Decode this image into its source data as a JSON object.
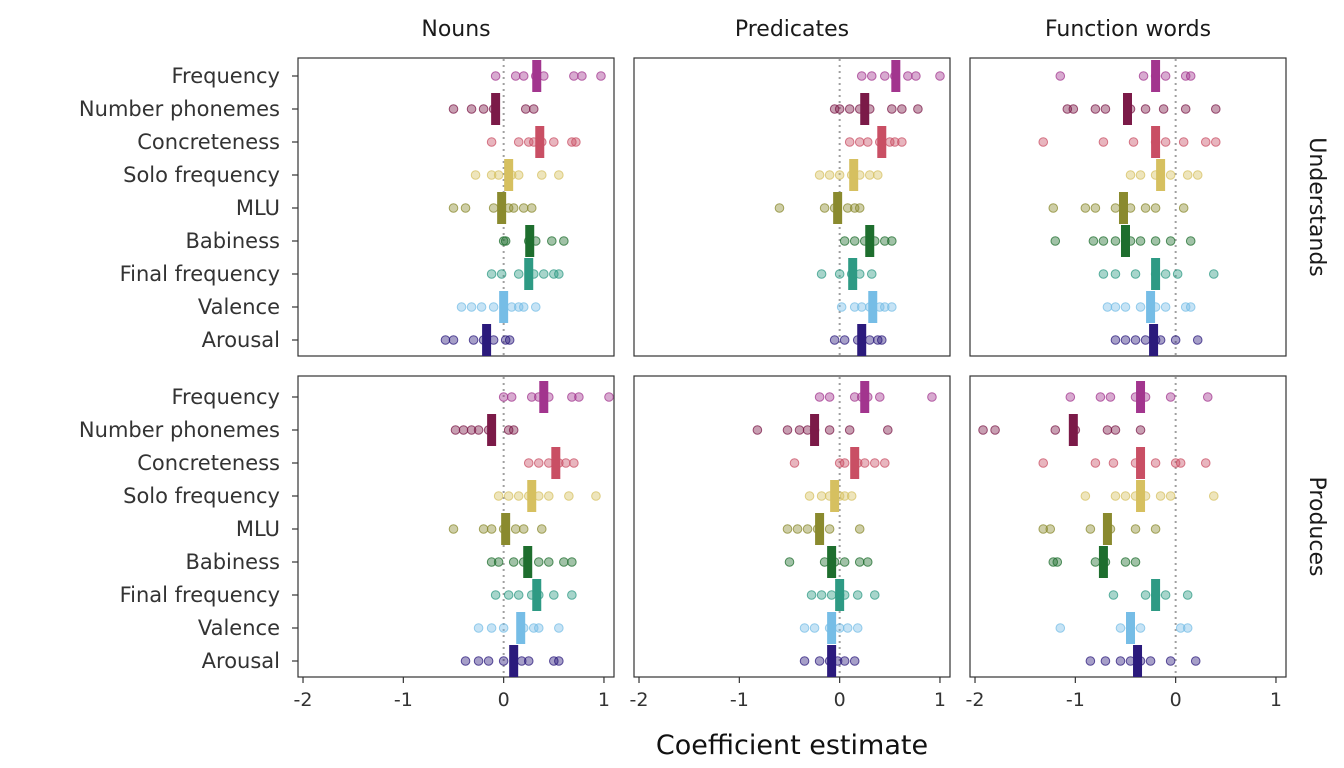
{
  "chart_data": {
    "type": "scatter",
    "xlabel": "Coefficient estimate",
    "x_ticks": [
      -2,
      -1,
      0,
      1
    ],
    "x_tick_labels": [
      "-2",
      "-1",
      "0",
      "1"
    ],
    "xlim": [
      -2.05,
      1.1
    ],
    "columns": [
      "Nouns",
      "Predicates",
      "Function words"
    ],
    "rows": [
      "Understands",
      "Produces"
    ],
    "predictors": [
      {
        "name": "Frequency",
        "color": "#a2358e"
      },
      {
        "name": "Number phonemes",
        "color": "#7b1a48"
      },
      {
        "name": "Concreteness",
        "color": "#c94f64"
      },
      {
        "name": "Solo frequency",
        "color": "#d6c060"
      },
      {
        "name": "MLU",
        "color": "#8a8a2e"
      },
      {
        "name": "Babiness",
        "color": "#1e6e2e"
      },
      {
        "name": "Final frequency",
        "color": "#2e9a84"
      },
      {
        "name": "Valence",
        "color": "#76bde6"
      },
      {
        "name": "Arousal",
        "color": "#2b1a7c"
      }
    ],
    "panels": [
      {
        "row": "Understands",
        "column": "Nouns",
        "predictors": [
          {
            "name": "Frequency",
            "estimate": 0.33,
            "points": [
              -0.08,
              0.12,
              0.2,
              0.32,
              0.4,
              0.7,
              0.78,
              0.97
            ]
          },
          {
            "name": "Number phonemes",
            "estimate": -0.08,
            "points": [
              -0.5,
              -0.32,
              -0.2,
              -0.1,
              0.22,
              0.3
            ]
          },
          {
            "name": "Concreteness",
            "estimate": 0.36,
            "points": [
              -0.12,
              0.15,
              0.25,
              0.3,
              0.38,
              0.5,
              0.68,
              0.72
            ]
          },
          {
            "name": "Solo frequency",
            "estimate": 0.05,
            "points": [
              -0.28,
              -0.12,
              -0.05,
              0.08,
              0.15,
              0.38,
              0.55
            ]
          },
          {
            "name": "MLU",
            "estimate": -0.02,
            "points": [
              -0.5,
              -0.38,
              -0.1,
              0.05,
              0.1,
              0.2,
              0.28
            ]
          },
          {
            "name": "Babiness",
            "estimate": 0.26,
            "points": [
              0.0,
              0.02,
              0.25,
              0.32,
              0.48,
              0.6
            ]
          },
          {
            "name": "Final frequency",
            "estimate": 0.25,
            "points": [
              -0.12,
              -0.02,
              0.15,
              0.3,
              0.4,
              0.5,
              0.55
            ]
          },
          {
            "name": "Valence",
            "estimate": 0.0,
            "points": [
              -0.42,
              -0.32,
              -0.22,
              -0.1,
              0.08,
              0.15,
              0.2,
              0.32
            ]
          },
          {
            "name": "Arousal",
            "estimate": -0.17,
            "points": [
              -0.58,
              -0.5,
              -0.3,
              -0.2,
              -0.1,
              0.02,
              0.06
            ]
          }
        ]
      },
      {
        "row": "Understands",
        "column": "Predicates",
        "predictors": [
          {
            "name": "Frequency",
            "estimate": 0.56,
            "points": [
              0.22,
              0.32,
              0.45,
              0.55,
              0.68,
              0.76,
              1.0
            ]
          },
          {
            "name": "Number phonemes",
            "estimate": 0.25,
            "points": [
              -0.05,
              0.0,
              0.1,
              0.2,
              0.3,
              0.52,
              0.62,
              0.78
            ]
          },
          {
            "name": "Concreteness",
            "estimate": 0.42,
            "points": [
              0.1,
              0.2,
              0.28,
              0.4,
              0.5,
              0.55,
              0.62
            ]
          },
          {
            "name": "Solo frequency",
            "estimate": 0.14,
            "points": [
              -0.2,
              -0.1,
              0.0,
              0.12,
              0.2,
              0.3,
              0.38
            ]
          },
          {
            "name": "MLU",
            "estimate": -0.02,
            "points": [
              -0.6,
              -0.15,
              -0.05,
              0.08,
              0.15,
              0.2
            ]
          },
          {
            "name": "Babiness",
            "estimate": 0.3,
            "points": [
              0.05,
              0.15,
              0.25,
              0.35,
              0.45,
              0.52
            ]
          },
          {
            "name": "Final frequency",
            "estimate": 0.13,
            "points": [
              -0.18,
              0.0,
              0.12,
              0.2,
              0.32
            ]
          },
          {
            "name": "Valence",
            "estimate": 0.33,
            "points": [
              0.02,
              0.15,
              0.22,
              0.3,
              0.4,
              0.45,
              0.52
            ]
          },
          {
            "name": "Arousal",
            "estimate": 0.22,
            "points": [
              -0.05,
              0.05,
              0.18,
              0.3,
              0.38,
              0.42
            ]
          }
        ]
      },
      {
        "row": "Understands",
        "column": "Function words",
        "predictors": [
          {
            "name": "Frequency",
            "estimate": -0.2,
            "points": [
              -1.15,
              -0.32,
              -0.2,
              -0.1,
              0.1,
              0.15
            ]
          },
          {
            "name": "Number phonemes",
            "estimate": -0.48,
            "points": [
              -1.08,
              -1.02,
              -0.8,
              -0.7,
              -0.45,
              -0.3,
              -0.12,
              0.1,
              0.4
            ]
          },
          {
            "name": "Concreteness",
            "estimate": -0.2,
            "points": [
              -1.32,
              -0.72,
              -0.42,
              -0.2,
              -0.1,
              0.08,
              0.3,
              0.4
            ]
          },
          {
            "name": "Solo frequency",
            "estimate": -0.15,
            "points": [
              -0.45,
              -0.35,
              -0.2,
              -0.05,
              0.12,
              0.22
            ]
          },
          {
            "name": "MLU",
            "estimate": -0.52,
            "points": [
              -1.22,
              -0.9,
              -0.8,
              -0.6,
              -0.45,
              -0.3,
              -0.2,
              0.08
            ]
          },
          {
            "name": "Babiness",
            "estimate": -0.5,
            "points": [
              -1.2,
              -0.82,
              -0.72,
              -0.6,
              -0.45,
              -0.35,
              -0.2,
              -0.05,
              0.15
            ]
          },
          {
            "name": "Final frequency",
            "estimate": -0.2,
            "points": [
              -0.72,
              -0.6,
              -0.4,
              -0.2,
              -0.1,
              0.02,
              0.38
            ]
          },
          {
            "name": "Valence",
            "estimate": -0.25,
            "points": [
              -0.68,
              -0.6,
              -0.5,
              -0.35,
              -0.2,
              -0.1,
              0.1,
              0.15
            ]
          },
          {
            "name": "Arousal",
            "estimate": -0.22,
            "points": [
              -0.6,
              -0.5,
              -0.4,
              -0.3,
              -0.2,
              -0.15,
              0.0,
              0.22
            ]
          }
        ]
      },
      {
        "row": "Produces",
        "column": "Nouns",
        "predictors": [
          {
            "name": "Frequency",
            "estimate": 0.4,
            "points": [
              0.0,
              0.08,
              0.28,
              0.35,
              0.45,
              0.68,
              0.75,
              1.05
            ]
          },
          {
            "name": "Number phonemes",
            "estimate": -0.12,
            "points": [
              -0.48,
              -0.4,
              -0.32,
              -0.25,
              -0.15,
              0.05,
              0.1
            ]
          },
          {
            "name": "Concreteness",
            "estimate": 0.52,
            "points": [
              0.25,
              0.35,
              0.45,
              0.55,
              0.62,
              0.7
            ]
          },
          {
            "name": "Solo frequency",
            "estimate": 0.28,
            "points": [
              -0.05,
              0.05,
              0.15,
              0.25,
              0.35,
              0.45,
              0.65,
              0.92
            ]
          },
          {
            "name": "MLU",
            "estimate": 0.02,
            "points": [
              -0.5,
              -0.2,
              -0.12,
              0.0,
              0.12,
              0.2,
              0.38
            ]
          },
          {
            "name": "Babiness",
            "estimate": 0.24,
            "points": [
              -0.12,
              -0.05,
              0.1,
              0.2,
              0.35,
              0.45,
              0.6,
              0.68
            ]
          },
          {
            "name": "Final frequency",
            "estimate": 0.33,
            "points": [
              -0.08,
              0.05,
              0.15,
              0.28,
              0.35,
              0.5,
              0.68
            ]
          },
          {
            "name": "Valence",
            "estimate": 0.17,
            "points": [
              -0.25,
              -0.12,
              0.0,
              0.2,
              0.3,
              0.35,
              0.55
            ]
          },
          {
            "name": "Arousal",
            "estimate": 0.1,
            "points": [
              -0.38,
              -0.25,
              -0.15,
              0.0,
              0.18,
              0.25,
              0.5,
              0.55
            ]
          }
        ]
      },
      {
        "row": "Produces",
        "column": "Predicates",
        "predictors": [
          {
            "name": "Frequency",
            "estimate": 0.25,
            "points": [
              -0.2,
              -0.1,
              0.15,
              0.22,
              0.28,
              0.4,
              0.92
            ]
          },
          {
            "name": "Number phonemes",
            "estimate": -0.25,
            "points": [
              -0.82,
              -0.52,
              -0.4,
              -0.32,
              -0.25,
              -0.1,
              0.1,
              0.48
            ]
          },
          {
            "name": "Concreteness",
            "estimate": 0.15,
            "points": [
              -0.45,
              0.0,
              0.05,
              0.18,
              0.25,
              0.35,
              0.45
            ]
          },
          {
            "name": "Solo frequency",
            "estimate": -0.05,
            "points": [
              -0.3,
              -0.18,
              -0.1,
              0.0,
              0.05,
              0.12
            ]
          },
          {
            "name": "MLU",
            "estimate": -0.2,
            "points": [
              -0.52,
              -0.42,
              -0.32,
              -0.22,
              -0.1,
              0.2
            ]
          },
          {
            "name": "Babiness",
            "estimate": -0.08,
            "points": [
              -0.5,
              -0.15,
              -0.05,
              0.05,
              0.2,
              0.28
            ]
          },
          {
            "name": "Final frequency",
            "estimate": 0.0,
            "points": [
              -0.28,
              -0.18,
              -0.08,
              0.0,
              0.05,
              0.18,
              0.35
            ]
          },
          {
            "name": "Valence",
            "estimate": -0.08,
            "points": [
              -0.35,
              -0.25,
              -0.1,
              0.0,
              0.08,
              0.18
            ]
          },
          {
            "name": "Arousal",
            "estimate": -0.08,
            "points": [
              -0.35,
              -0.2,
              -0.1,
              -0.02,
              0.05,
              0.15
            ]
          }
        ]
      },
      {
        "row": "Produces",
        "column": "Function words",
        "predictors": [
          {
            "name": "Frequency",
            "estimate": -0.35,
            "points": [
              -1.05,
              -0.75,
              -0.65,
              -0.4,
              -0.3,
              -0.05,
              0.32
            ]
          },
          {
            "name": "Number phonemes",
            "estimate": -1.02,
            "points": [
              -1.92,
              -1.8,
              -1.2,
              -1.0,
              -0.68,
              -0.6,
              -0.35
            ]
          },
          {
            "name": "Concreteness",
            "estimate": -0.35,
            "points": [
              -1.32,
              -0.8,
              -0.62,
              -0.4,
              -0.2,
              0.0,
              0.05,
              0.3
            ]
          },
          {
            "name": "Solo frequency",
            "estimate": -0.35,
            "points": [
              -0.9,
              -0.6,
              -0.5,
              -0.4,
              -0.3,
              -0.15,
              -0.05,
              0.38
            ]
          },
          {
            "name": "MLU",
            "estimate": -0.68,
            "points": [
              -1.32,
              -1.25,
              -0.85,
              -0.65,
              -0.4,
              -0.2
            ]
          },
          {
            "name": "Babiness",
            "estimate": -0.72,
            "points": [
              -1.22,
              -1.18,
              -0.8,
              -0.7,
              -0.5,
              -0.4
            ]
          },
          {
            "name": "Final frequency",
            "estimate": -0.2,
            "points": [
              -0.62,
              -0.3,
              -0.2,
              -0.1,
              0.12
            ]
          },
          {
            "name": "Valence",
            "estimate": -0.45,
            "points": [
              -1.15,
              -0.55,
              -0.45,
              -0.35,
              0.05,
              0.12
            ]
          },
          {
            "name": "Arousal",
            "estimate": -0.38,
            "points": [
              -0.85,
              -0.7,
              -0.55,
              -0.45,
              -0.35,
              -0.25,
              -0.05,
              0.2
            ]
          }
        ]
      }
    ]
  }
}
